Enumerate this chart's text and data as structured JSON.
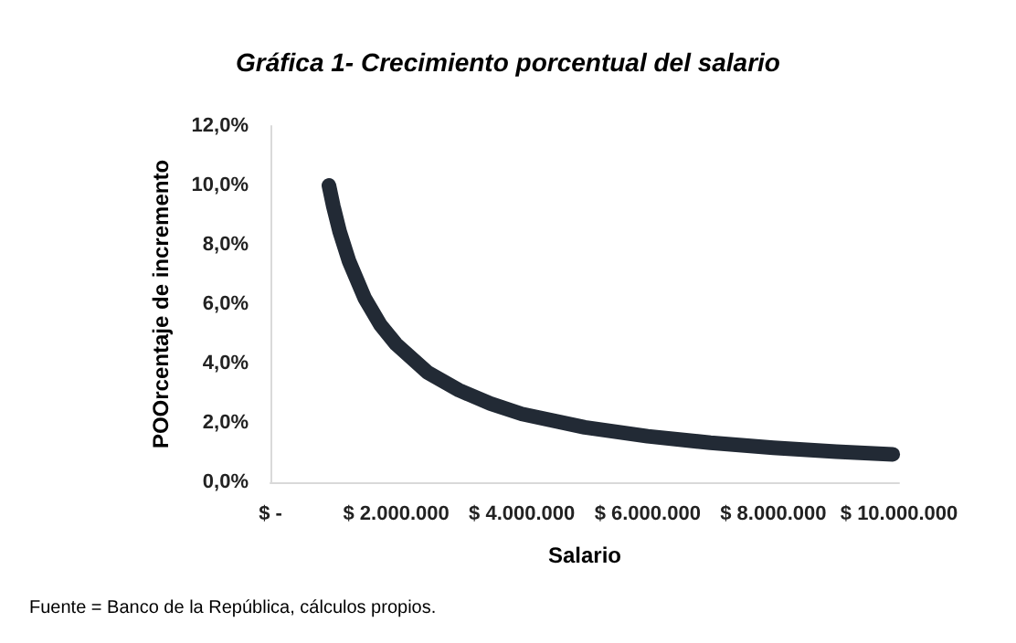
{
  "chart_data": {
    "type": "line",
    "title": "Gráfica 1- Crecimiento porcentual del salario",
    "xlabel": "Salario",
    "ylabel": "POOrcentaje de incremento",
    "x": [
      930000,
      1000000,
      1100000,
      1250000,
      1500000,
      1750000,
      2000000,
      2500000,
      3000000,
      3500000,
      4000000,
      5000000,
      6000000,
      7000000,
      8000000,
      9000000,
      9900000
    ],
    "series": [
      {
        "color": "#222a35",
        "values": [
          10.0,
          9.3,
          8.45,
          7.45,
          6.2,
          5.3,
          4.65,
          3.7,
          3.1,
          2.65,
          2.3,
          1.85,
          1.55,
          1.33,
          1.16,
          1.03,
          0.94
        ]
      }
    ],
    "xlim": [
      0,
      10000000
    ],
    "xticks": [
      {
        "value": 0,
        "label": "$ -"
      },
      {
        "value": 2000000,
        "label": "$ 2.000.000"
      },
      {
        "value": 4000000,
        "label": "$ 4.000.000"
      },
      {
        "value": 6000000,
        "label": "$ 6.000.000"
      },
      {
        "value": 8000000,
        "label": "$ 8.000.000"
      },
      {
        "value": 10000000,
        "label": "$ 10.000.000"
      }
    ],
    "ylim": [
      0,
      12
    ],
    "yticks": [
      {
        "value": 0,
        "label": "0,0%"
      },
      {
        "value": 2,
        "label": "2,0%"
      },
      {
        "value": 4,
        "label": "4,0%"
      },
      {
        "value": 6,
        "label": "6,0%"
      },
      {
        "value": 8,
        "label": "8,0%"
      },
      {
        "value": 10,
        "label": "10,0%"
      },
      {
        "value": 12,
        "label": "12,0%"
      }
    ],
    "grid": false,
    "line_style": "solid",
    "annotations": [
      "Fuente = Banco de la República, cálculos propios."
    ]
  }
}
